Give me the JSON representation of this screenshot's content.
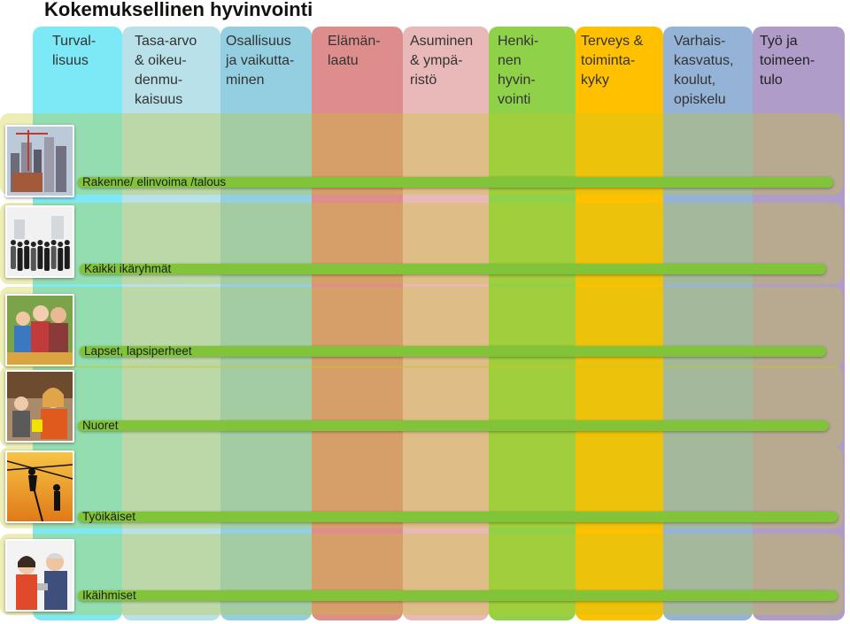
{
  "title": "Kokemuksellinen hyvinvointi",
  "columns": [
    {
      "label": "Turval-\nlisuus",
      "color": "#7de8f6",
      "text_color": "#333333"
    },
    {
      "label": "Tasa-arvo\n& oikeu-\ndenmu-\nkaisuus",
      "color": "#b8e1e9",
      "text_color": "#333333"
    },
    {
      "label": "Osallisuus\nja vaikutta-\nminen",
      "color": "#94cfe1",
      "text_color": "#333333"
    },
    {
      "label": "Elämän-\nlaatu",
      "color": "#de8d8d",
      "text_color": "#333333"
    },
    {
      "label": "Asuminen\n& ympä-\nristö",
      "color": "#e9b8b8",
      "text_color": "#333333"
    },
    {
      "label": "Henki-\nnen\nhyvin-\nvointi",
      "color": "#8fd24a",
      "text_color": "#333333"
    },
    {
      "label": "Terveys &\ntoiminta-\nkyky",
      "color": "#ffc000",
      "text_color": "#333333"
    },
    {
      "label": "Varhais-\nkasvatus,\nkoulut,\nopiskelu",
      "color": "#94b3d6",
      "text_color": "#333333"
    },
    {
      "label": "Työ ja\ntoimeen-\ntulo",
      "color": "#b09cc8",
      "text_color": "#222222"
    }
  ],
  "rows": [
    {
      "label": "Rakenne/ elinvoima /talous",
      "photo": "city-skyline-construction"
    },
    {
      "label": "Kaikki ikäryhmät",
      "photo": "people-silhouettes"
    },
    {
      "label": "Lapset, lapsiperheet",
      "photo": "family-children"
    },
    {
      "label": "Nuoret",
      "photo": "students-classroom"
    },
    {
      "label": "Työikäiset",
      "photo": "workers-silhouettes-sunset"
    },
    {
      "label": "Ikäihmiset",
      "photo": "elderly-couple"
    }
  ],
  "colors": {
    "row_band": "#c8c81e",
    "bar": "#81c43a"
  }
}
